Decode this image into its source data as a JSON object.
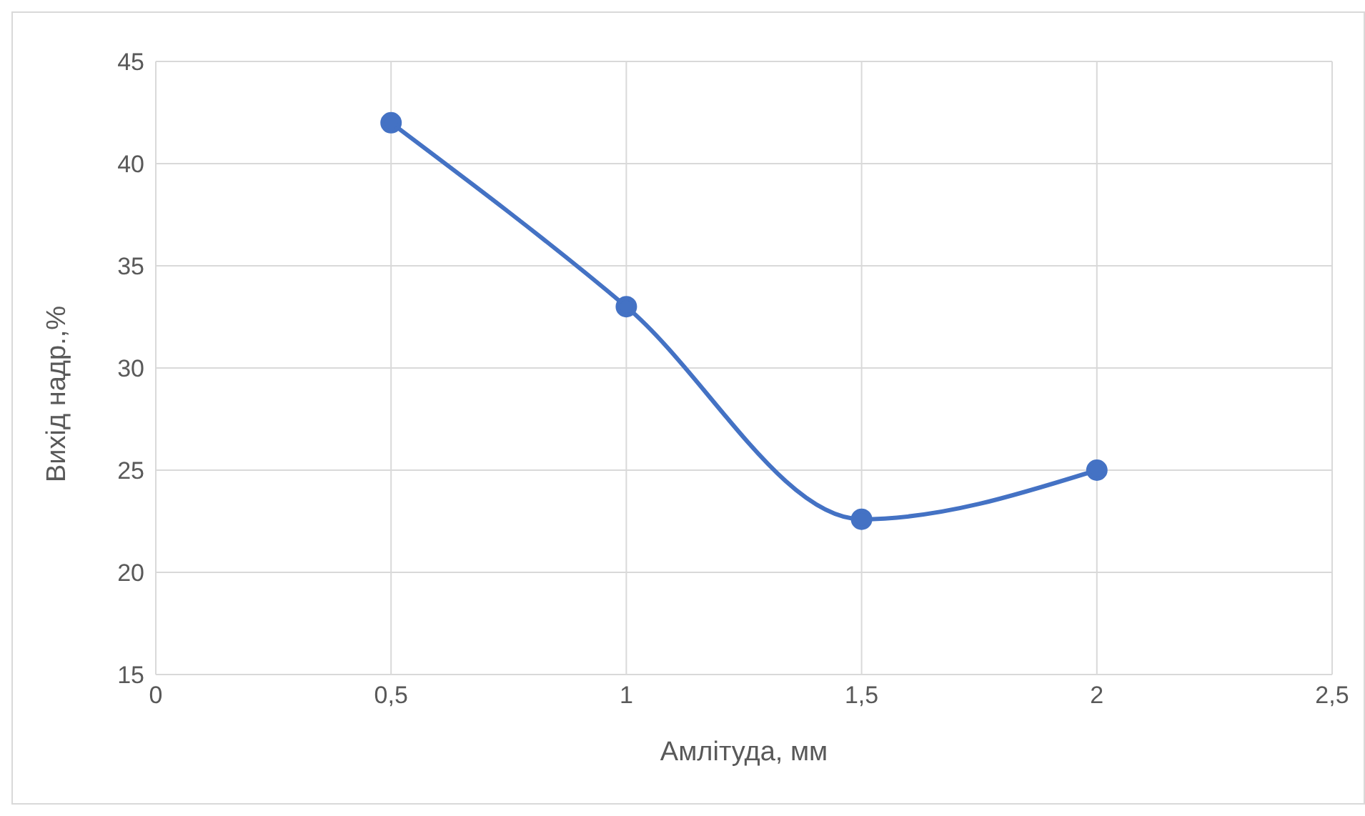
{
  "chart_data": {
    "type": "line",
    "xlabel": "Амлітуда, мм",
    "ylabel": "Вихід надр.,%",
    "x": [
      0.5,
      1,
      1.5,
      2
    ],
    "series": [
      {
        "color": "#4472c4",
        "values": [
          42,
          33,
          22.6,
          25
        ]
      }
    ],
    "xlim": [
      0,
      2.5
    ],
    "xticks": [
      0,
      {
        "value": 0.5,
        "label": "0,5"
      },
      1,
      {
        "value": 1.5,
        "label": "1,5"
      },
      2,
      {
        "value": 2.5,
        "label": "2,5"
      }
    ],
    "ylim": [
      15,
      45
    ],
    "yticks": [
      15,
      20,
      25,
      30,
      35,
      40,
      45
    ],
    "grid": true,
    "marker": "circle",
    "line_style": "solid"
  }
}
